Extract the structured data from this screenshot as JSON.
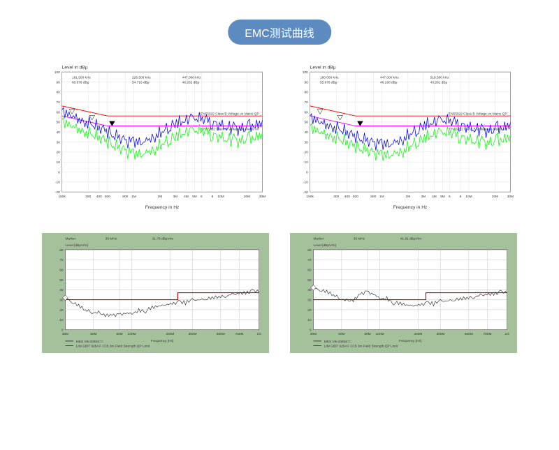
{
  "title": "EMC测试曲线",
  "title_bg": "#5b8bc0",
  "top_charts": [
    {
      "ylabel": "Level in dBμ",
      "xlabel": "Frequency in Hz",
      "ylim": [
        -20,
        100
      ],
      "ytick_step": 10,
      "xticks": [
        "150k",
        "300",
        "400",
        "500",
        "800",
        "1M",
        "2M",
        "3M",
        "4M",
        "5M",
        "6",
        "8",
        "10M",
        "20M",
        "30M"
      ],
      "markers": [
        {
          "freq": "181.500 kHz",
          "level": "60.676 dBμ"
        },
        {
          "freq": "226.500 kHz",
          "level": "54.716 dBμ"
        },
        {
          "freq": "447.000 kHz",
          "level": "48.282 dBμ"
        }
      ],
      "limit_lines": [
        {
          "label": "EN55022 Class B Voltage on Mains QP",
          "color": "#ff0000",
          "y_start": 66,
          "y_end": 56
        },
        {
          "label": "EN55022 Class B Voltage on Mains AV",
          "color": "#ff00ff",
          "y_start": 56,
          "y_end": 46
        }
      ],
      "series": [
        {
          "color": "#0000ff",
          "data": [
            62,
            58,
            55,
            50,
            48,
            45,
            42,
            38,
            35,
            32,
            30,
            28,
            30,
            35,
            40,
            45,
            48,
            50,
            52,
            53,
            52,
            50,
            48,
            46,
            44,
            42,
            45,
            48,
            50
          ]
        },
        {
          "color": "#00ff00",
          "data": [
            52,
            48,
            45,
            40,
            38,
            35,
            32,
            28,
            25,
            22,
            18,
            16,
            18,
            22,
            28,
            32,
            35,
            38,
            40,
            41,
            40,
            38,
            36,
            34,
            32,
            30,
            33,
            36,
            38
          ]
        }
      ],
      "bg_color": "#ffffff",
      "grid_color": "#cccccc"
    },
    {
      "ylabel": "Level in dBμ",
      "xlabel": "Frequency in Hz",
      "ylim": [
        -20,
        100
      ],
      "ytick_step": 10,
      "xticks": [
        "150k",
        "300",
        "400",
        "500",
        "800",
        "1M",
        "2M",
        "3M",
        "4M",
        "5M",
        "6",
        "8",
        "10M",
        "20M",
        "30M"
      ],
      "markers": [
        {
          "freq": "180.000 kHz",
          "level": "55.876 dBμ"
        },
        {
          "freq": "447.000 kHz",
          "level": "46.190 dBμ"
        },
        {
          "freq": "518.500 kHz",
          "level": "43.281 dBμ"
        }
      ],
      "limit_lines": [
        {
          "label": "EN55022 Class B Voltage on Mains QP",
          "color": "#ff0000",
          "y_start": 66,
          "y_end": 56
        },
        {
          "label": "EN55022 Class B Voltage on Mains AV",
          "color": "#ff00ff",
          "y_start": 56,
          "y_end": 46
        }
      ],
      "series": [
        {
          "color": "#0000ff",
          "data": [
            56,
            52,
            49,
            45,
            43,
            40,
            37,
            34,
            32,
            30,
            28,
            26,
            28,
            32,
            38,
            42,
            46,
            48,
            50,
            51,
            50,
            48,
            46,
            44,
            42,
            40,
            43,
            46,
            48
          ]
        },
        {
          "color": "#00ff00",
          "data": [
            46,
            42,
            39,
            35,
            33,
            30,
            27,
            24,
            22,
            20,
            17,
            15,
            17,
            20,
            26,
            30,
            33,
            36,
            38,
            39,
            38,
            36,
            34,
            32,
            30,
            28,
            31,
            34,
            36
          ]
        }
      ],
      "bg_color": "#ffffff",
      "grid_color": "#cccccc"
    }
  ],
  "bottom_charts": [
    {
      "marker_text": "Marker",
      "marker_freq": "30 MHz",
      "marker_level": "31.76 dBμV/m",
      "ylabel": "Level [dBμV/m]",
      "xlabel": "Frequency [Hz]",
      "ylim": [
        0,
        80
      ],
      "ytick_step": 10,
      "xticks": [
        "30M",
        "50M",
        "80M",
        "100M",
        "200M",
        "300M",
        "500M",
        "700M",
        "1G"
      ],
      "limit_color": "#cc0000",
      "limit_y1": 30,
      "limit_x_break": 230,
      "limit_y2": 37,
      "data_color": "#333333",
      "data": [
        32,
        28,
        24,
        20,
        18,
        16,
        15,
        14,
        15,
        16,
        17,
        18,
        20,
        22,
        24,
        25,
        26,
        27,
        28,
        29,
        30,
        31,
        32,
        33,
        34,
        35,
        36,
        37,
        38,
        39
      ],
      "bg_color": "#a5c19c",
      "plot_bg": "#ffffff",
      "legend": [
        {
          "label": "MES  VB-20092□□",
          "color": "#333333"
        },
        {
          "label": "LIM  GB/T 9254 F Cl.B 3m    Field Strength QP Limit",
          "color": "#cc0000"
        }
      ]
    },
    {
      "marker_text": "Marker",
      "marker_freq": "30 MHz",
      "marker_level": "41.81 dBμV/m",
      "ylabel": "Level [dBμV/m]",
      "xlabel": "Frequency [Hz]",
      "ylim": [
        0,
        80
      ],
      "ytick_step": 10,
      "xticks": [
        "30M",
        "50M",
        "80M",
        "100M",
        "200M",
        "300M",
        "500M",
        "700M",
        "1G"
      ],
      "limit_color": "#cc0000",
      "limit_y1": 30,
      "limit_x_break": 230,
      "limit_y2": 37,
      "data_color": "#333333",
      "data": [
        42,
        40,
        38,
        35,
        32,
        28,
        30,
        35,
        38,
        35,
        32,
        30,
        28,
        26,
        25,
        24,
        25,
        26,
        27,
        28,
        29,
        30,
        31,
        32,
        33,
        34,
        35,
        36,
        37,
        38
      ],
      "bg_color": "#a5c19c",
      "plot_bg": "#ffffff",
      "legend": [
        {
          "label": "MES  VB-20092□□",
          "color": "#333333"
        },
        {
          "label": "LIM  GB/T 9254 F Cl.B 3m    Field Strength QP Limit",
          "color": "#cc0000"
        }
      ]
    }
  ]
}
